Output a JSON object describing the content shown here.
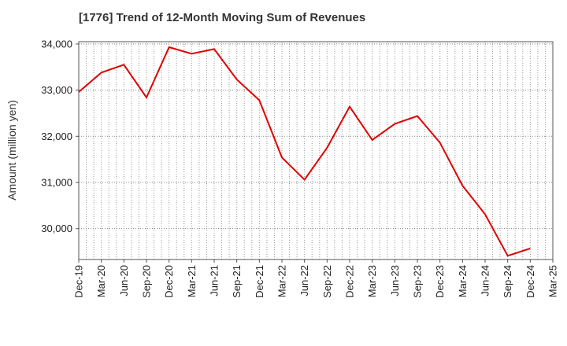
{
  "chart_data": {
    "type": "line",
    "title": "[1776]  Trend of 12-Month Moving Sum of Revenues",
    "xlabel": "",
    "ylabel": "Amount (million yen)",
    "x_tick_labels": [
      "Dec-19",
      "Mar-20",
      "Jun-20",
      "Sep-20",
      "Dec-20",
      "Mar-21",
      "Jun-21",
      "Sep-21",
      "Dec-21",
      "Mar-22",
      "Jun-22",
      "Sep-22",
      "Dec-22",
      "Mar-23",
      "Jun-23",
      "Sep-23",
      "Dec-23",
      "Mar-24",
      "Jun-24",
      "Sep-24",
      "Dec-24",
      "Mar-25"
    ],
    "y_tick_labels": [
      "30,000",
      "31,000",
      "32,000",
      "33,000",
      "34,000"
    ],
    "y_ticks": [
      30000,
      31000,
      32000,
      33000,
      34000
    ],
    "ylim": [
      29330,
      34050
    ],
    "grid": true,
    "series": [
      {
        "color": "#e00000",
        "x": [
          "Dec-19",
          "Mar-20",
          "Jun-20",
          "Sep-20",
          "Dec-20",
          "Mar-21",
          "Jun-21",
          "Sep-21",
          "Dec-21",
          "Mar-22",
          "Jun-22",
          "Sep-22",
          "Dec-22",
          "Mar-23",
          "Jun-23",
          "Sep-23",
          "Dec-23",
          "Mar-24",
          "Jun-24",
          "Sep-24",
          "Dec-24"
        ],
        "values": [
          32960,
          33380,
          33550,
          32840,
          33930,
          33790,
          33890,
          33230,
          32780,
          31540,
          31060,
          31750,
          32640,
          31920,
          32270,
          32440,
          31860,
          30930,
          30310,
          29410,
          29570
        ]
      }
    ]
  }
}
